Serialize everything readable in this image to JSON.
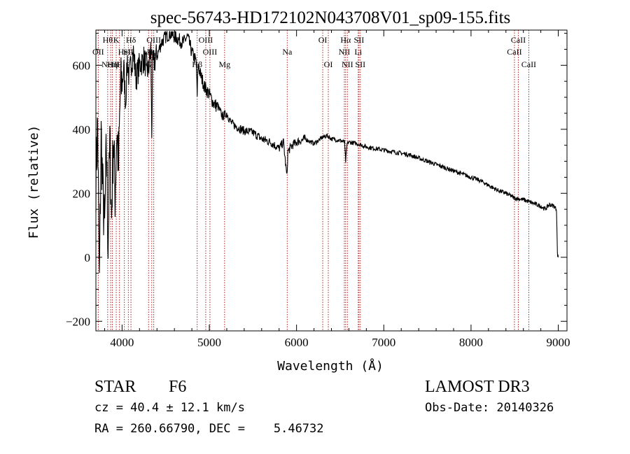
{
  "chart_data": {
    "type": "line",
    "title": "spec-56743-HD172102N043708V01_sp09-155.fits",
    "xlabel": "Wavelength (Å)",
    "ylabel": "Flux (relative)",
    "xlim": [
      3700,
      9100
    ],
    "ylim": [
      -230,
      710
    ],
    "x_ticks": [
      4000,
      5000,
      6000,
      7000,
      8000,
      9000
    ],
    "y_ticks": [
      -200,
      0,
      200,
      400,
      600
    ],
    "grid": false,
    "series": [
      {
        "name": "flux",
        "x": [
          3700,
          3720,
          3740,
          3760,
          3780,
          3800,
          3820,
          3840,
          3860,
          3880,
          3900,
          3920,
          3940,
          3960,
          3980,
          4000,
          4020,
          4040,
          4060,
          4080,
          4100,
          4130,
          4160,
          4200,
          4250,
          4300,
          4330,
          4340,
          4350,
          4400,
          4450,
          4500,
          4550,
          4600,
          4650,
          4700,
          4750,
          4800,
          4850,
          4861,
          4870,
          4900,
          4950,
          5000,
          5050,
          5100,
          5150,
          5200,
          5250,
          5300,
          5400,
          5500,
          5600,
          5700,
          5800,
          5850,
          5890,
          5900,
          5950,
          6000,
          6100,
          6200,
          6300,
          6350,
          6400,
          6500,
          6550,
          6563,
          6580,
          6600,
          6700,
          6800,
          6900,
          7000,
          7100,
          7200,
          7300,
          7400,
          7500,
          7600,
          7700,
          7800,
          7900,
          8000,
          8100,
          8200,
          8300,
          8400,
          8500,
          8600,
          8700,
          8800,
          8850,
          8900,
          8950,
          8980,
          8990,
          9000
        ],
        "y": [
          250,
          420,
          -90,
          380,
          200,
          80,
          350,
          40,
          360,
          120,
          380,
          200,
          400,
          280,
          520,
          540,
          590,
          480,
          620,
          560,
          600,
          640,
          560,
          600,
          620,
          580,
          650,
          380,
          600,
          630,
          670,
          690,
          700,
          690,
          680,
          670,
          690,
          640,
          610,
          500,
          600,
          570,
          530,
          510,
          480,
          470,
          440,
          450,
          420,
          410,
          395,
          390,
          370,
          360,
          340,
          360,
          250,
          330,
          350,
          360,
          370,
          355,
          375,
          380,
          370,
          365,
          360,
          300,
          355,
          360,
          355,
          345,
          340,
          335,
          330,
          325,
          320,
          310,
          300,
          290,
          280,
          270,
          260,
          250,
          240,
          225,
          210,
          200,
          185,
          180,
          170,
          160,
          150,
          165,
          160,
          150,
          10,
          0
        ]
      }
    ],
    "annotations": [
      {
        "x": 3835,
        "label": "Hθ",
        "row": 1
      },
      {
        "x": 3889,
        "label": "Hη",
        "row": 3
      },
      {
        "x": 3727,
        "label": "OII",
        "row": 2
      },
      {
        "x": 3869,
        "label": "NeIII",
        "row": 3
      },
      {
        "x": 3933,
        "label": "K",
        "row": 1
      },
      {
        "x": 3970,
        "label": "H",
        "row": 3
      },
      {
        "x": 4026,
        "label": "HeI",
        "row": 2
      },
      {
        "x": 4072,
        "label": "SII",
        "row": 2
      },
      {
        "x": 4102,
        "label": "Hδ",
        "row": 1
      },
      {
        "x": 4304,
        "label": "G",
        "row": 3
      },
      {
        "x": 4340,
        "label": "Hγ",
        "row": 2
      },
      {
        "x": 4363,
        "label": "OIII",
        "row": 1
      },
      {
        "x": 4861,
        "label": "Hβ",
        "row": 3
      },
      {
        "x": 4959,
        "label": "OIII",
        "row": 1
      },
      {
        "x": 5007,
        "label": "OIII",
        "row": 2
      },
      {
        "x": 5175,
        "label": "Mg",
        "row": 3
      },
      {
        "x": 5893,
        "label": "Na",
        "row": 2
      },
      {
        "x": 6300,
        "label": "OI",
        "row": 1
      },
      {
        "x": 6364,
        "label": "OI",
        "row": 3
      },
      {
        "x": 6563,
        "label": "Hα",
        "row": 1
      },
      {
        "x": 6548,
        "label": "NII",
        "row": 2
      },
      {
        "x": 6583,
        "label": "NII",
        "row": 3
      },
      {
        "x": 6707,
        "label": "Li",
        "row": 2
      },
      {
        "x": 6716,
        "label": "SII",
        "row": 1
      },
      {
        "x": 6731,
        "label": "SII",
        "row": 3
      },
      {
        "x": 8498,
        "label": "CaII",
        "row": 2
      },
      {
        "x": 8542,
        "label": "CaII",
        "row": 1
      },
      {
        "x": 8662,
        "label": "CaII",
        "row": 3
      }
    ]
  },
  "info": {
    "object_type": "STAR",
    "subclass": "F6",
    "survey": "LAMOST DR3",
    "cz": "cz = 40.4 ± 12.1 km/s",
    "obs_date": "Obs-Date: 20140326",
    "coords": "RA = 260.66790, DEC =    5.46732"
  },
  "colors": {
    "line_marker": "#b22222",
    "spectrum": "#000000",
    "axes": "#000000"
  }
}
